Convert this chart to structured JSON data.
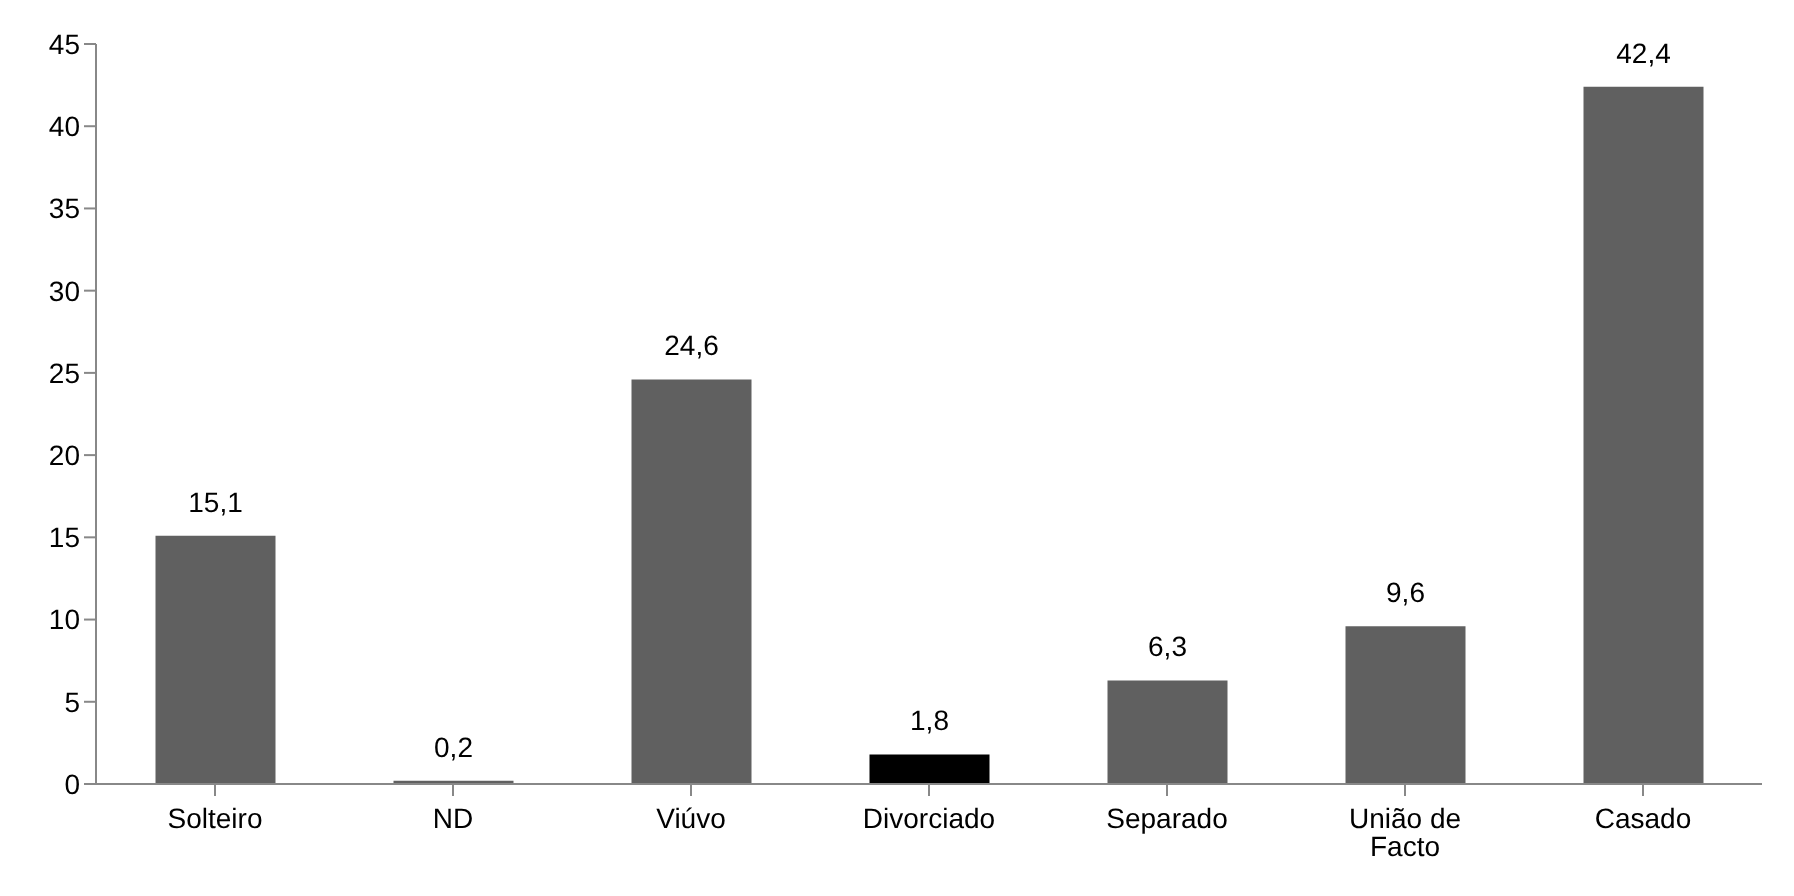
{
  "chart_data": {
    "type": "bar",
    "categories": [
      "Solteiro",
      "ND",
      "Viúvo",
      "Divorciado",
      "Separado",
      "União de Facto",
      "Casado"
    ],
    "values": [
      15.1,
      0.2,
      24.6,
      1.8,
      6.3,
      9.6,
      42.4
    ],
    "colors": [
      "#606060",
      "#606060",
      "#606060",
      "#000000",
      "#606060",
      "#606060",
      "#606060"
    ],
    "value_labels": [
      "15,1",
      "0,2",
      "24,6",
      "1,8",
      "6,3",
      "9,6",
      "42,4"
    ],
    "ylim": [
      0,
      45
    ],
    "yticks": [
      0,
      5,
      10,
      15,
      20,
      25,
      30,
      35,
      40,
      45
    ],
    "grid": false,
    "legend": false
  }
}
